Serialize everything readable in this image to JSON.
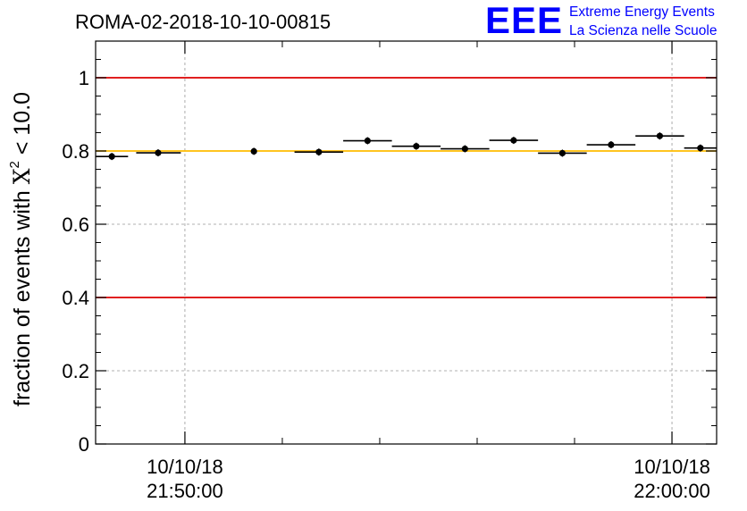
{
  "header": {
    "run_title": "ROMA-02-2018-10-10-00815",
    "logo_letters": "EEE",
    "logo_line1": "Extreme Energy Events",
    "logo_line2": "La Scienza nelle Scuole"
  },
  "colors": {
    "threshold": "#dd0000",
    "mean_line": "#ffbb00",
    "logo": "#0000ff",
    "marker": "#000000",
    "grid": "#999999"
  },
  "chart_data": {
    "type": "scatter",
    "title": "ROMA-02-2018-10-10-00815",
    "ylabel": {
      "prefix": "fraction of events with ",
      "symbol": "X",
      "superscript": "2",
      "suffix": " < 10.0"
    },
    "xlabel": "",
    "ylim": [
      0,
      1.1
    ],
    "xlim": [
      "2018-10-10 21:48:10",
      "2018-10-10 22:00:55"
    ],
    "grid": true,
    "yticks": [
      {
        "value": 0,
        "label": "0"
      },
      {
        "value": 0.2,
        "label": "0.2"
      },
      {
        "value": 0.4,
        "label": "0.4"
      },
      {
        "value": 0.6,
        "label": "0.6"
      },
      {
        "value": 0.8,
        "label": "0.8"
      },
      {
        "value": 1,
        "label": "1"
      }
    ],
    "xticks": [
      {
        "time": "2018-10-10 21:50:00",
        "date_label": "10/10/18",
        "time_label": "21:50:00"
      },
      {
        "time": "2018-10-10 22:00:00",
        "date_label": "10/10/18",
        "time_label": "22:00:00"
      }
    ],
    "minor_xticks": [
      "2018-10-10 21:52:00",
      "2018-10-10 21:54:00",
      "2018-10-10 21:56:00",
      "2018-10-10 21:58:00"
    ],
    "horizontal_lines": [
      {
        "value": 1.0,
        "color": "#dd0000"
      },
      {
        "value": 0.4,
        "color": "#dd0000"
      },
      {
        "value": 0.8,
        "color": "#ffbb00"
      }
    ],
    "points": [
      {
        "start": "2018-10-10 21:48:10",
        "end": "2018-10-10 21:48:50",
        "center": "2018-10-10 21:48:30",
        "value": 0.785
      },
      {
        "start": "2018-10-10 21:49:00",
        "end": "2018-10-10 21:49:55",
        "center": "2018-10-10 21:49:27",
        "value": 0.795
      },
      {
        "start": "2018-10-10 21:51:25",
        "end": "2018-10-10 21:51:25",
        "center": "2018-10-10 21:51:25",
        "value": 0.799
      },
      {
        "start": "2018-10-10 21:52:15",
        "end": "2018-10-10 21:53:15",
        "center": "2018-10-10 21:52:45",
        "value": 0.797
      },
      {
        "start": "2018-10-10 21:53:15",
        "end": "2018-10-10 21:54:15",
        "center": "2018-10-10 21:53:45",
        "value": 0.828
      },
      {
        "start": "2018-10-10 21:54:15",
        "end": "2018-10-10 21:55:15",
        "center": "2018-10-10 21:54:45",
        "value": 0.813
      },
      {
        "start": "2018-10-10 21:55:15",
        "end": "2018-10-10 21:56:15",
        "center": "2018-10-10 21:55:45",
        "value": 0.806
      },
      {
        "start": "2018-10-10 21:56:15",
        "end": "2018-10-10 21:57:15",
        "center": "2018-10-10 21:56:45",
        "value": 0.829
      },
      {
        "start": "2018-10-10 21:57:15",
        "end": "2018-10-10 21:58:15",
        "center": "2018-10-10 21:57:45",
        "value": 0.794
      },
      {
        "start": "2018-10-10 21:58:15",
        "end": "2018-10-10 21:59:15",
        "center": "2018-10-10 21:58:45",
        "value": 0.817
      },
      {
        "start": "2018-10-10 21:59:15",
        "end": "2018-10-10 22:00:15",
        "center": "2018-10-10 21:59:45",
        "value": 0.841
      },
      {
        "start": "2018-10-10 22:00:15",
        "end": "2018-10-10 22:00:55",
        "center": "2018-10-10 22:00:35",
        "value": 0.808
      }
    ]
  }
}
